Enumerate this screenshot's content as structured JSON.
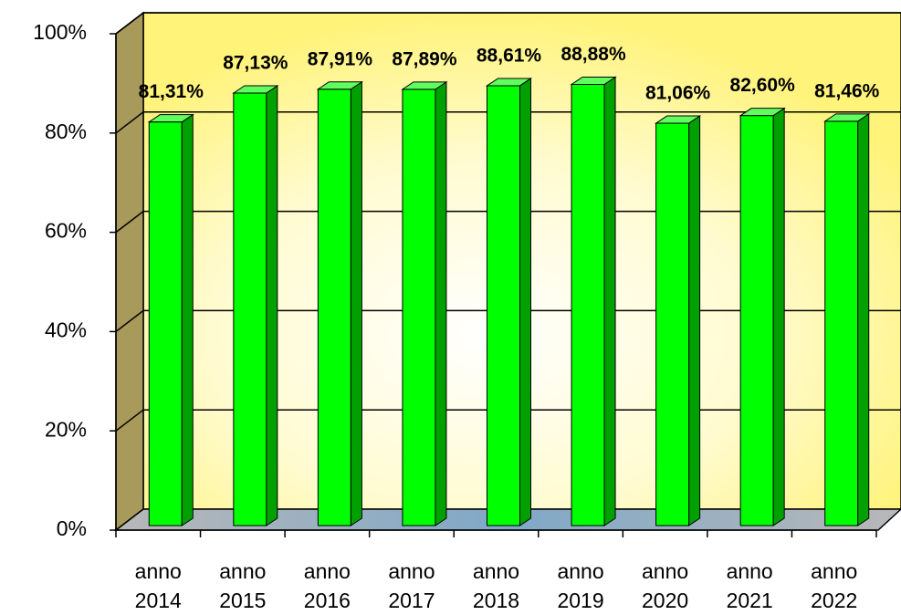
{
  "chart_data": {
    "type": "bar",
    "categories": [
      "anno 2014",
      "anno 2015",
      "anno 2016",
      "anno 2017",
      "anno 2018",
      "anno 2019",
      "anno 2020",
      "anno 2021",
      "anno 2022"
    ],
    "values": [
      81.31,
      87.13,
      87.91,
      87.89,
      88.61,
      88.88,
      81.06,
      82.6,
      81.46
    ],
    "value_labels": [
      "81,31%",
      "87,13%",
      "87,91%",
      "87,89%",
      "88,61%",
      "88,88%",
      "81,06%",
      "82,60%",
      "81,46%"
    ],
    "color": "#00ff00",
    "ylim": [
      0,
      100
    ],
    "yticks": [
      {
        "value": 0,
        "label": "0%"
      },
      {
        "value": 20,
        "label": "20%"
      },
      {
        "value": 40,
        "label": "40%"
      },
      {
        "value": 60,
        "label": "60%"
      },
      {
        "value": 80,
        "label": "80%"
      },
      {
        "value": 100,
        "label": "100%"
      }
    ],
    "grid": true
  }
}
